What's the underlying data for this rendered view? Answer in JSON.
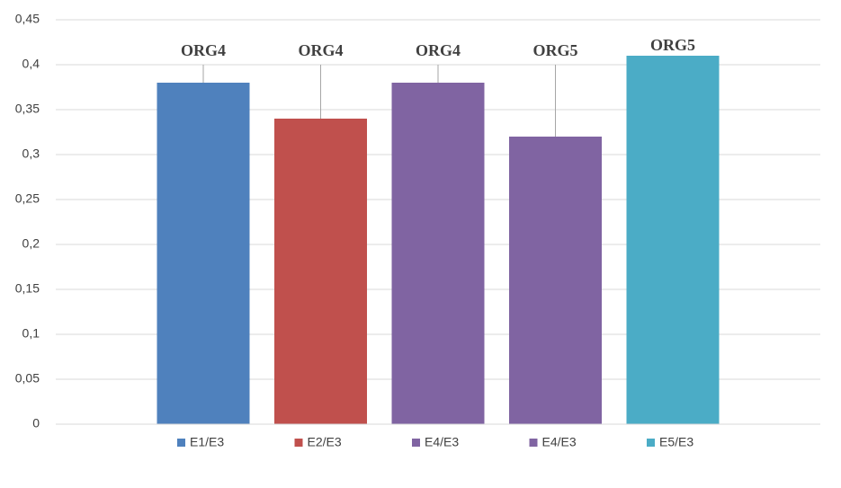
{
  "chart_data": {
    "type": "bar",
    "series": [
      {
        "name": "E1/E3",
        "color": "#4f81bd",
        "values": [
          0.38
        ],
        "label": "ORG4"
      },
      {
        "name": "E2/E3",
        "color": "#c0504d",
        "values": [
          0.34
        ],
        "label": "ORG4"
      },
      {
        "name": "E4/E3",
        "color": "#8064a2",
        "values": [
          0.38
        ],
        "label": "ORG4"
      },
      {
        "name": "E4/E3",
        "color": "#8064a2",
        "values": [
          0.32
        ],
        "label": "ORG5"
      },
      {
        "name": "E5/E3",
        "color": "#4bacc6",
        "values": [
          0.41
        ],
        "label": "ORG5"
      }
    ],
    "ylim": [
      0,
      0.45
    ],
    "yticks": [
      0,
      {
        "value": 0.05,
        "label": "0,05"
      },
      {
        "value": 0.1,
        "label": "0,1"
      },
      {
        "value": 0.15,
        "label": "0,15"
      },
      {
        "value": 0.2,
        "label": "0,2"
      },
      {
        "value": 0.25,
        "label": "0,25"
      },
      {
        "value": 0.3,
        "label": "0,3"
      },
      {
        "value": 0.35,
        "label": "0,35"
      },
      {
        "value": 0.4,
        "label": "0,4"
      },
      {
        "value": 0.45,
        "label": "0,45"
      }
    ],
    "grid": true,
    "legend": "bottom"
  }
}
